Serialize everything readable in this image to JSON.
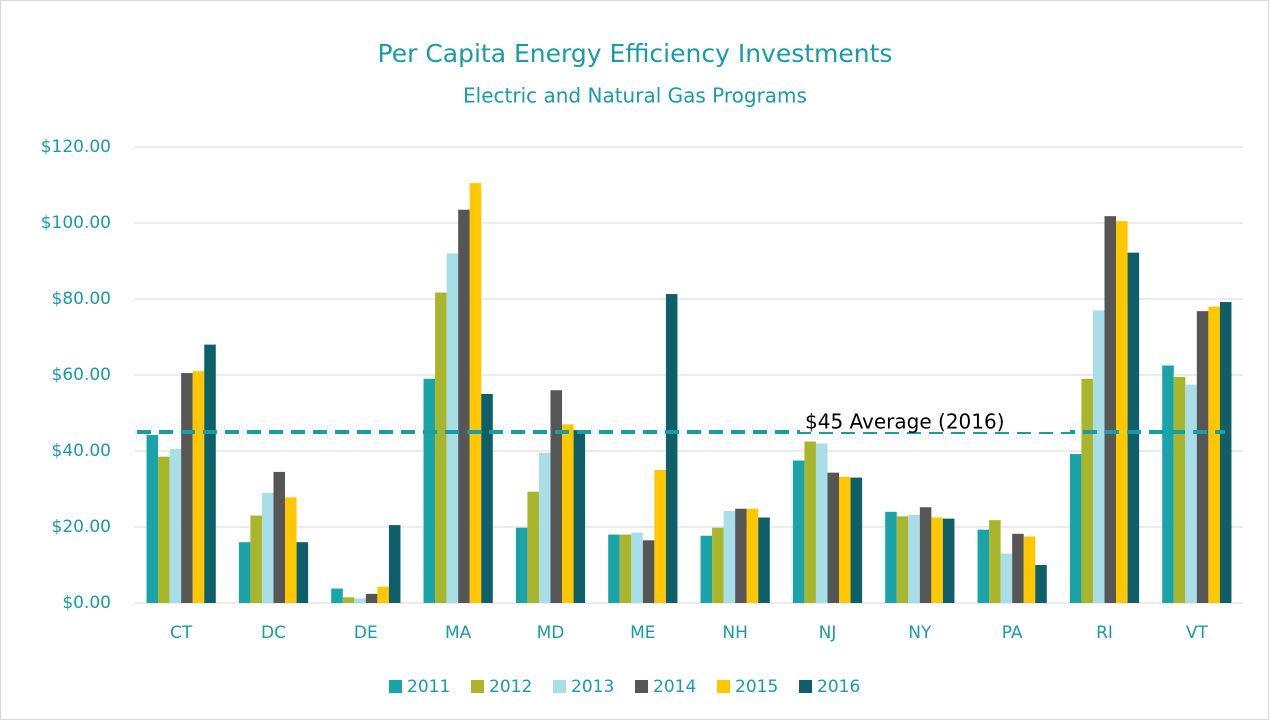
{
  "chart_data": {
    "type": "bar",
    "title": "Per Capita Energy Efficiency Investments",
    "subtitle": "Electric and Natural Gas Programs",
    "categories": [
      "CT",
      "DC",
      "DE",
      "MA",
      "MD",
      "ME",
      "NH",
      "NJ",
      "NY",
      "PA",
      "RI",
      "VT"
    ],
    "series": [
      {
        "name": "2011",
        "color": "#1ba3aa",
        "values": [
          44.2,
          16,
          3.8,
          59,
          19.8,
          18,
          17.7,
          37.5,
          24,
          19.3,
          39.2,
          62.5
        ]
      },
      {
        "name": "2012",
        "color": "#a9b62c",
        "values": [
          38.5,
          23,
          1.5,
          81.7,
          29.3,
          18,
          19.8,
          42.5,
          22.8,
          21.8,
          59,
          59.5
        ]
      },
      {
        "name": "2013",
        "color": "#a9dde8",
        "values": [
          40.5,
          29,
          1.2,
          92,
          39.5,
          18.5,
          24.2,
          42,
          23.2,
          13,
          77,
          57.5
        ]
      },
      {
        "name": "2014",
        "color": "#565656",
        "values": [
          60.5,
          34.5,
          2.4,
          103.5,
          56,
          16.5,
          24.8,
          34.3,
          25.2,
          18.2,
          101.8,
          76.8
        ]
      },
      {
        "name": "2015",
        "color": "#ffc700",
        "values": [
          61,
          27.8,
          4.3,
          110.5,
          47,
          35,
          24.8,
          33.2,
          22.5,
          17.5,
          100.5,
          78
        ]
      },
      {
        "name": "2016",
        "color": "#0f5f6a",
        "values": [
          68,
          16,
          20.5,
          55,
          45.5,
          81.3,
          22.5,
          33,
          22.2,
          10,
          92.2,
          79.2
        ]
      }
    ],
    "average_line": {
      "value": 45,
      "label": "$45 Average (2016)",
      "color": "#1a9ba5"
    },
    "ylim": [
      0,
      120
    ],
    "yticks": [
      {
        "value": 0,
        "label": "$0.00"
      },
      {
        "value": 20,
        "label": "$20.00"
      },
      {
        "value": 40,
        "label": "$40.00"
      },
      {
        "value": 60,
        "label": "$60.00"
      },
      {
        "value": 80,
        "label": "$80.00"
      },
      {
        "value": 100,
        "label": "$100.00"
      },
      {
        "value": 120,
        "label": "$120.00"
      }
    ],
    "grid": true,
    "legend": "bottom"
  }
}
